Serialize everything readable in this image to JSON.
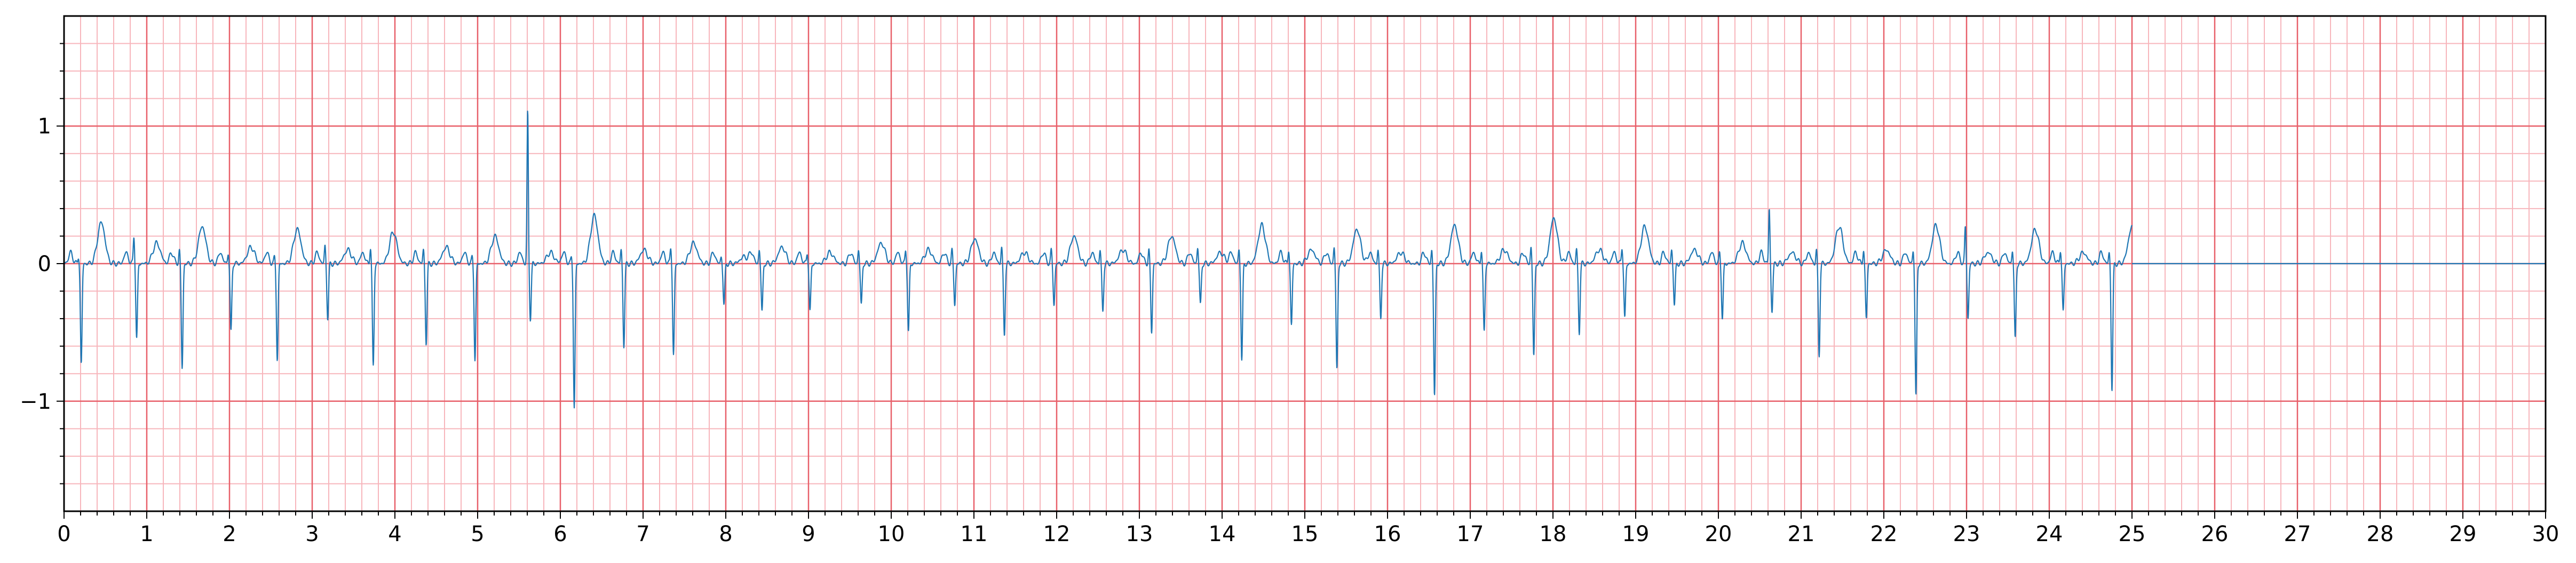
{
  "chart_data": {
    "type": "line",
    "title": "",
    "xlabel": "",
    "ylabel": "",
    "xlim": [
      0,
      30
    ],
    "ylim": [
      -1.8,
      1.8
    ],
    "grid": {
      "major_x": 1,
      "major_y": 1,
      "minor_x": 0.2,
      "minor_y": 0.2,
      "major_color": "#e8606a",
      "minor_color": "#f7b6bc"
    },
    "line_color": "#1f77b4",
    "x_ticks": [
      0,
      1,
      2,
      3,
      4,
      5,
      6,
      7,
      8,
      9,
      10,
      11,
      12,
      13,
      14,
      15,
      16,
      17,
      18,
      19,
      20,
      21,
      22,
      23,
      24,
      25,
      26,
      27,
      28,
      29,
      30
    ],
    "x_tick_labels": [
      "0",
      "1",
      "2",
      "3",
      "4",
      "5",
      "6",
      "7",
      "8",
      "9",
      "10",
      "11",
      "12",
      "13",
      "14",
      "15",
      "16",
      "17",
      "18",
      "19",
      "20",
      "21",
      "22",
      "23",
      "24",
      "25",
      "26",
      "27",
      "28",
      "29",
      "30"
    ],
    "y_ticks": [
      -1,
      0,
      1
    ],
    "y_tick_labels": [
      "−1",
      "0",
      "1"
    ],
    "series": [
      {
        "signal_end": 25.0,
        "beats": [
          {
            "t": 0.19,
            "r": 0.05,
            "s": -0.73
          },
          {
            "t": 0.86,
            "r": 0.2,
            "s": -0.55
          },
          {
            "t": 1.41,
            "r": 0.1,
            "s": -0.76
          },
          {
            "t": 2.0,
            "r": 0.08,
            "s": -0.5
          },
          {
            "t": 2.56,
            "r": 0.05,
            "s": -0.7
          },
          {
            "t": 3.17,
            "r": 0.13,
            "s": -0.4
          },
          {
            "t": 3.72,
            "r": 0.12,
            "s": -0.75
          },
          {
            "t": 4.36,
            "r": 0.1,
            "s": -0.58
          },
          {
            "t": 4.95,
            "r": 0.05,
            "s": -0.7
          },
          {
            "t": 5.62,
            "r": 1.1,
            "s": -0.4
          },
          {
            "t": 6.15,
            "r": 0.05,
            "s": -1.05
          },
          {
            "t": 6.75,
            "r": 0.1,
            "s": -0.6
          },
          {
            "t": 7.35,
            "r": 0.12,
            "s": -0.67
          },
          {
            "t": 7.96,
            "r": 0.05,
            "s": -0.3
          },
          {
            "t": 8.42,
            "r": 0.1,
            "s": -0.35
          },
          {
            "t": 9.0,
            "r": 0.08,
            "s": -0.35
          },
          {
            "t": 9.62,
            "r": 0.1,
            "s": -0.3
          },
          {
            "t": 10.19,
            "r": 0.1,
            "s": -0.5
          },
          {
            "t": 10.75,
            "r": 0.1,
            "s": -0.3
          },
          {
            "t": 11.35,
            "r": 0.12,
            "s": -0.52
          },
          {
            "t": 11.95,
            "r": 0.1,
            "s": -0.3
          },
          {
            "t": 12.54,
            "r": 0.1,
            "s": -0.35
          },
          {
            "t": 13.13,
            "r": 0.1,
            "s": -0.5
          },
          {
            "t": 13.72,
            "r": 0.12,
            "s": -0.3
          },
          {
            "t": 14.22,
            "r": 0.1,
            "s": -0.7
          },
          {
            "t": 14.82,
            "r": 0.1,
            "s": -0.45
          },
          {
            "t": 15.37,
            "r": 0.12,
            "s": -0.77
          },
          {
            "t": 15.9,
            "r": 0.1,
            "s": -0.4
          },
          {
            "t": 16.55,
            "r": 0.1,
            "s": -0.96
          },
          {
            "t": 17.15,
            "r": 0.1,
            "s": -0.5
          },
          {
            "t": 17.75,
            "r": 0.12,
            "s": -0.67
          },
          {
            "t": 18.3,
            "r": 0.1,
            "s": -0.5
          },
          {
            "t": 18.85,
            "r": 0.12,
            "s": -0.4
          },
          {
            "t": 19.45,
            "r": 0.1,
            "s": -0.3
          },
          {
            "t": 20.03,
            "r": 0.08,
            "s": -0.4
          },
          {
            "t": 20.63,
            "r": 0.4,
            "s": -0.35
          },
          {
            "t": 21.2,
            "r": 0.1,
            "s": -0.67
          },
          {
            "t": 21.77,
            "r": 0.1,
            "s": -0.4
          },
          {
            "t": 22.37,
            "r": 0.1,
            "s": -0.97
          },
          {
            "t": 23.0,
            "r": 0.27,
            "s": -0.4
          },
          {
            "t": 23.57,
            "r": 0.1,
            "s": -0.55
          },
          {
            "t": 24.15,
            "r": 0.1,
            "s": -0.35
          },
          {
            "t": 24.74,
            "r": 0.08,
            "s": -0.92
          }
        ],
        "t_wave_peaks": [
          0.3,
          0.15,
          0.27,
          0.12,
          0.25,
          0.1,
          0.23,
          0.12,
          0.2,
          0.08,
          0.35,
          0.1,
          0.15,
          0.05,
          0.12,
          0.08,
          0.15,
          0.1,
          0.18,
          0.08,
          0.2,
          0.1,
          0.2,
          0.08,
          0.28,
          0.1,
          0.25,
          0.08,
          0.28,
          0.1,
          0.33,
          0.1,
          0.27,
          0.1,
          0.15,
          0.08,
          0.27,
          0.1,
          0.28,
          0.08,
          0.25,
          0.08,
          0.27
        ]
      }
    ]
  }
}
